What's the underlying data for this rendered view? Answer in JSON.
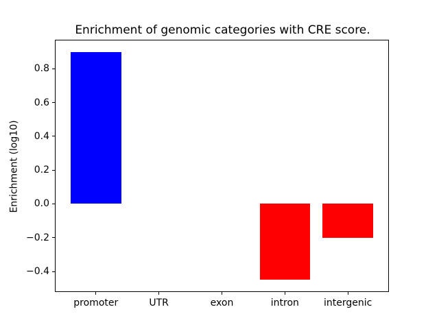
{
  "chart_data": {
    "type": "bar",
    "title": "Enrichment of genomic categories with CRE score.",
    "xlabel": "",
    "ylabel": "Enrichment (log10)",
    "categories": [
      "promoter",
      "UTR",
      "exon",
      "intron",
      "intergenic"
    ],
    "values": [
      0.9,
      0.0,
      0.0,
      -0.45,
      -0.2
    ],
    "positive_color": "#0000ff",
    "negative_color": "#ff0000",
    "yticks": [
      -0.4,
      -0.2,
      0.0,
      0.2,
      0.4,
      0.6,
      0.8
    ],
    "ylim": [
      -0.5175,
      0.9675
    ],
    "xlim": [
      -0.64,
      4.64
    ],
    "bar_width": 0.8,
    "zero_line": true,
    "grid": false,
    "legend": null,
    "background_color": "#ffffff",
    "axes_color": "#000000"
  }
}
